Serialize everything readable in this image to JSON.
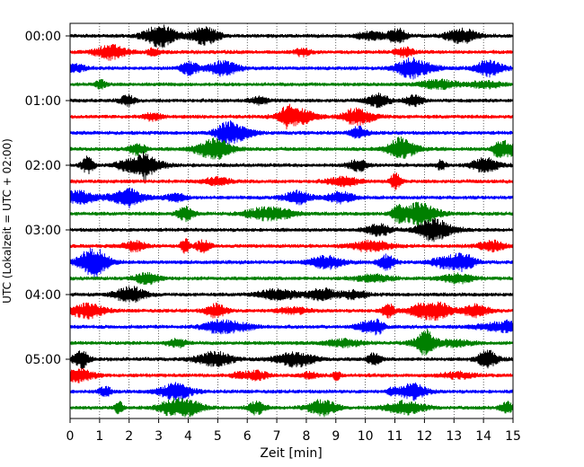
{
  "chart_data": {
    "type": "line",
    "title": "",
    "xlabel": "Zeit  [min]",
    "ylabel": "UTC (Lokalzeit = UTC + 02:00)",
    "xlim": [
      0,
      15
    ],
    "x_ticks": [
      "0",
      "1",
      "2",
      "3",
      "4",
      "5",
      "6",
      "7",
      "8",
      "9",
      "10",
      "11",
      "12",
      "13",
      "14",
      "15"
    ],
    "y_ticks": [
      "00:00",
      "01:00",
      "02:00",
      "03:00",
      "04:00",
      "05:00"
    ],
    "grid": "vertical dotted at each minute",
    "trace_colors": [
      "#000000",
      "#ff0000",
      "#0000ff",
      "#008000"
    ],
    "trace_count": 24
  }
}
